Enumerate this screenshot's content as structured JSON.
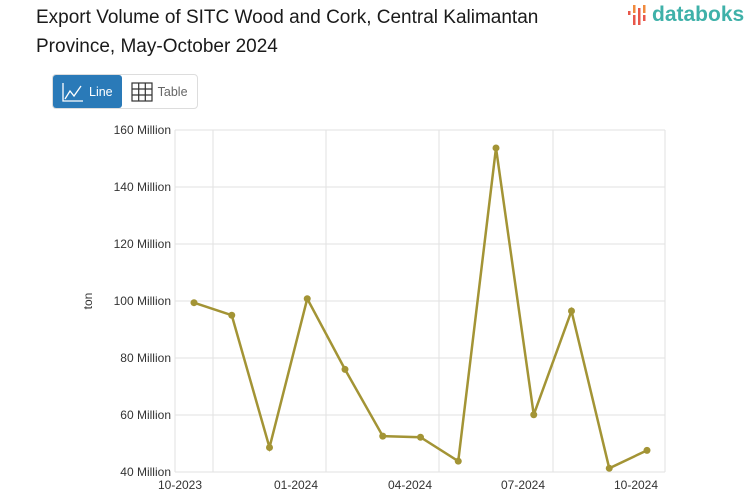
{
  "header": {
    "title": "Export Volume of SITC Wood and Cork, Central Kalimantan Province, May-October 2024",
    "logo_text": "databoks"
  },
  "toggle": {
    "line_label": "Line",
    "table_label": "Table",
    "active": "line"
  },
  "colors": {
    "line": "#a39435",
    "active_button": "#2a7ab8",
    "logo": "#3fb1a9"
  },
  "chart_data": {
    "type": "line",
    "title": "Export Volume of SITC Wood and Cork, Central Kalimantan Province, May-October 2024",
    "xlabel": "",
    "ylabel": "ton",
    "ylim": [
      40,
      160
    ],
    "yunit": "Million",
    "yticks": [
      "40 Million",
      "60 Million",
      "80 Million",
      "100 Million",
      "120 Million",
      "140 Million",
      "160 Million"
    ],
    "xticks": [
      "10-2023",
      "01-2024",
      "04-2024",
      "07-2024",
      "10-2024"
    ],
    "x": [
      "10-2023",
      "11-2023",
      "12-2023",
      "01-2024",
      "02-2024",
      "03-2024",
      "04-2024",
      "05-2024",
      "06-2024",
      "07-2024",
      "08-2024",
      "09-2024",
      "10-2024"
    ],
    "series": [
      {
        "name": "Export volume (ton)",
        "values": [
          99.4,
          95.0,
          48.6,
          100.8,
          76.0,
          52.6,
          52.2,
          43.8,
          153.7,
          60.1,
          96.5,
          41.3,
          47.6
        ]
      }
    ],
    "grid": true,
    "legend": "none"
  }
}
